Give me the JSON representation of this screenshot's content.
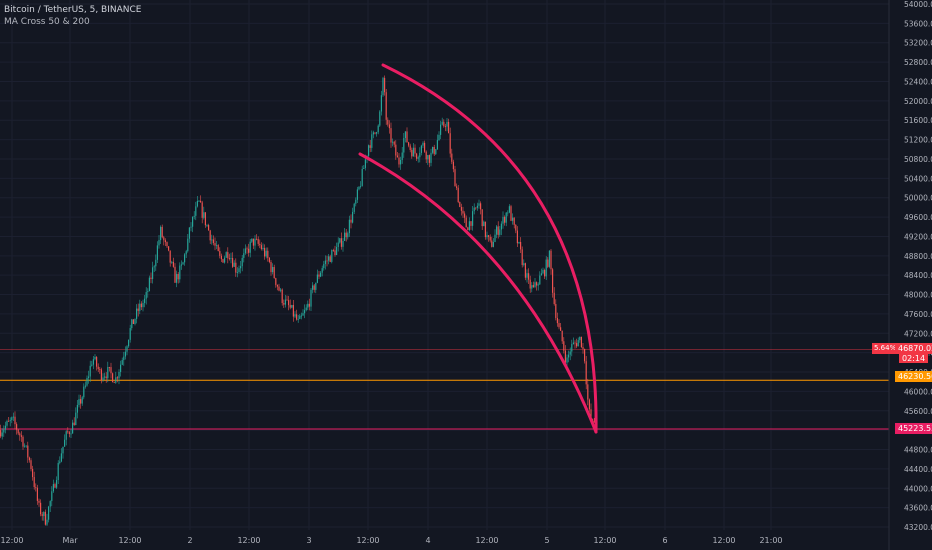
{
  "legend": {
    "symbol": "Bitcoin / TetherUS, 5, BINANCE",
    "indicator": "MA Cross 50 & 200"
  },
  "price_tags": {
    "percent": "5.64%",
    "current": "46870.02",
    "countdown": "02:14",
    "orange_level": "46230.50",
    "pink_level": "45223.53"
  },
  "colors": {
    "background": "#131722",
    "grid": "#1c2030",
    "axis_text": "#b2b5be",
    "candle_up": "#26a69a",
    "candle_down": "#ef5350",
    "arc": "#e91e63",
    "orange_line": "#ff9800",
    "pink_line": "#e91e63",
    "current_tag": "#f23645"
  },
  "chart_data": {
    "type": "candlestick",
    "title": "",
    "y_axis_side": "right",
    "ylim": [
      43000,
      54000
    ],
    "y_ticks": [
      "43200.00",
      "43600.00",
      "44000.00",
      "44400.00",
      "44800.00",
      "45200.00",
      "45600.00",
      "46000.00",
      "46400.00",
      "46800.00",
      "47200.00",
      "47600.00",
      "48000.00",
      "48400.00",
      "48800.00",
      "49200.00",
      "49600.00",
      "50000.00",
      "50400.00",
      "50800.00",
      "51200.00",
      "51600.00",
      "52000.00",
      "52400.00",
      "52800.00",
      "53200.00",
      "53600.00",
      "54000.00"
    ],
    "x_ticks": [
      "12:00",
      "Mar",
      "12:00",
      "2",
      "12:00",
      "3",
      "12:00",
      "4",
      "12:00",
      "5",
      "12:00",
      "6",
      "12:00",
      "21:00"
    ],
    "grid": true,
    "price_path": [
      [
        0,
        45200
      ],
      [
        12,
        45400
      ],
      [
        22,
        45000
      ],
      [
        30,
        44500
      ],
      [
        38,
        43600
      ],
      [
        45,
        43350
      ],
      [
        52,
        43900
      ],
      [
        60,
        44700
      ],
      [
        66,
        45100
      ],
      [
        72,
        45300
      ],
      [
        78,
        45700
      ],
      [
        85,
        46100
      ],
      [
        92,
        46700
      ],
      [
        100,
        46350
      ],
      [
        108,
        46400
      ],
      [
        115,
        46250
      ],
      [
        122,
        46700
      ],
      [
        130,
        47300
      ],
      [
        138,
        47700
      ],
      [
        145,
        47900
      ],
      [
        152,
        48500
      ],
      [
        160,
        49300
      ],
      [
        168,
        48800
      ],
      [
        175,
        48300
      ],
      [
        182,
        48600
      ],
      [
        190,
        49400
      ],
      [
        198,
        49900
      ],
      [
        205,
        49500
      ],
      [
        212,
        49100
      ],
      [
        220,
        48700
      ],
      [
        228,
        48900
      ],
      [
        236,
        48500
      ],
      [
        244,
        48800
      ],
      [
        252,
        49100
      ],
      [
        260,
        49000
      ],
      [
        268,
        48700
      ],
      [
        275,
        48300
      ],
      [
        282,
        47900
      ],
      [
        290,
        47700
      ],
      [
        298,
        47400
      ],
      [
        306,
        47700
      ],
      [
        314,
        48200
      ],
      [
        322,
        48600
      ],
      [
        330,
        48800
      ],
      [
        338,
        49000
      ],
      [
        346,
        49300
      ],
      [
        354,
        49800
      ],
      [
        362,
        50500
      ],
      [
        368,
        51100
      ],
      [
        374,
        51300
      ],
      [
        379,
        51700
      ],
      [
        383,
        52500
      ],
      [
        386,
        51500
      ],
      [
        392,
        51100
      ],
      [
        398,
        50700
      ],
      [
        404,
        51300
      ],
      [
        410,
        51000
      ],
      [
        416,
        50900
      ],
      [
        422,
        51100
      ],
      [
        428,
        50800
      ],
      [
        434,
        51000
      ],
      [
        440,
        51400
      ],
      [
        446,
        51600
      ],
      [
        451,
        50700
      ],
      [
        456,
        50200
      ],
      [
        460,
        49700
      ],
      [
        466,
        49400
      ],
      [
        472,
        49600
      ],
      [
        478,
        49900
      ],
      [
        484,
        49300
      ],
      [
        490,
        49000
      ],
      [
        496,
        49300
      ],
      [
        502,
        49500
      ],
      [
        508,
        49800
      ],
      [
        513,
        49400
      ],
      [
        518,
        49000
      ],
      [
        523,
        48600
      ],
      [
        528,
        48200
      ],
      [
        533,
        48100
      ],
      [
        538,
        48300
      ],
      [
        544,
        48500
      ],
      [
        549,
        48800
      ],
      [
        553,
        47900
      ],
      [
        558,
        47300
      ],
      [
        562,
        47000
      ],
      [
        566,
        46600
      ],
      [
        570,
        46900
      ],
      [
        575,
        47000
      ],
      [
        580,
        47100
      ],
      [
        584,
        46700
      ],
      [
        588,
        45600
      ],
      [
        592,
        45300
      ],
      [
        596,
        45500
      ]
    ],
    "lines": [
      {
        "price": 46870.02,
        "label": "46870.02"
      },
      {
        "price": 46230.5,
        "label": "46230.50"
      },
      {
        "price": 45223.53,
        "label": "45223.53"
      }
    ]
  }
}
